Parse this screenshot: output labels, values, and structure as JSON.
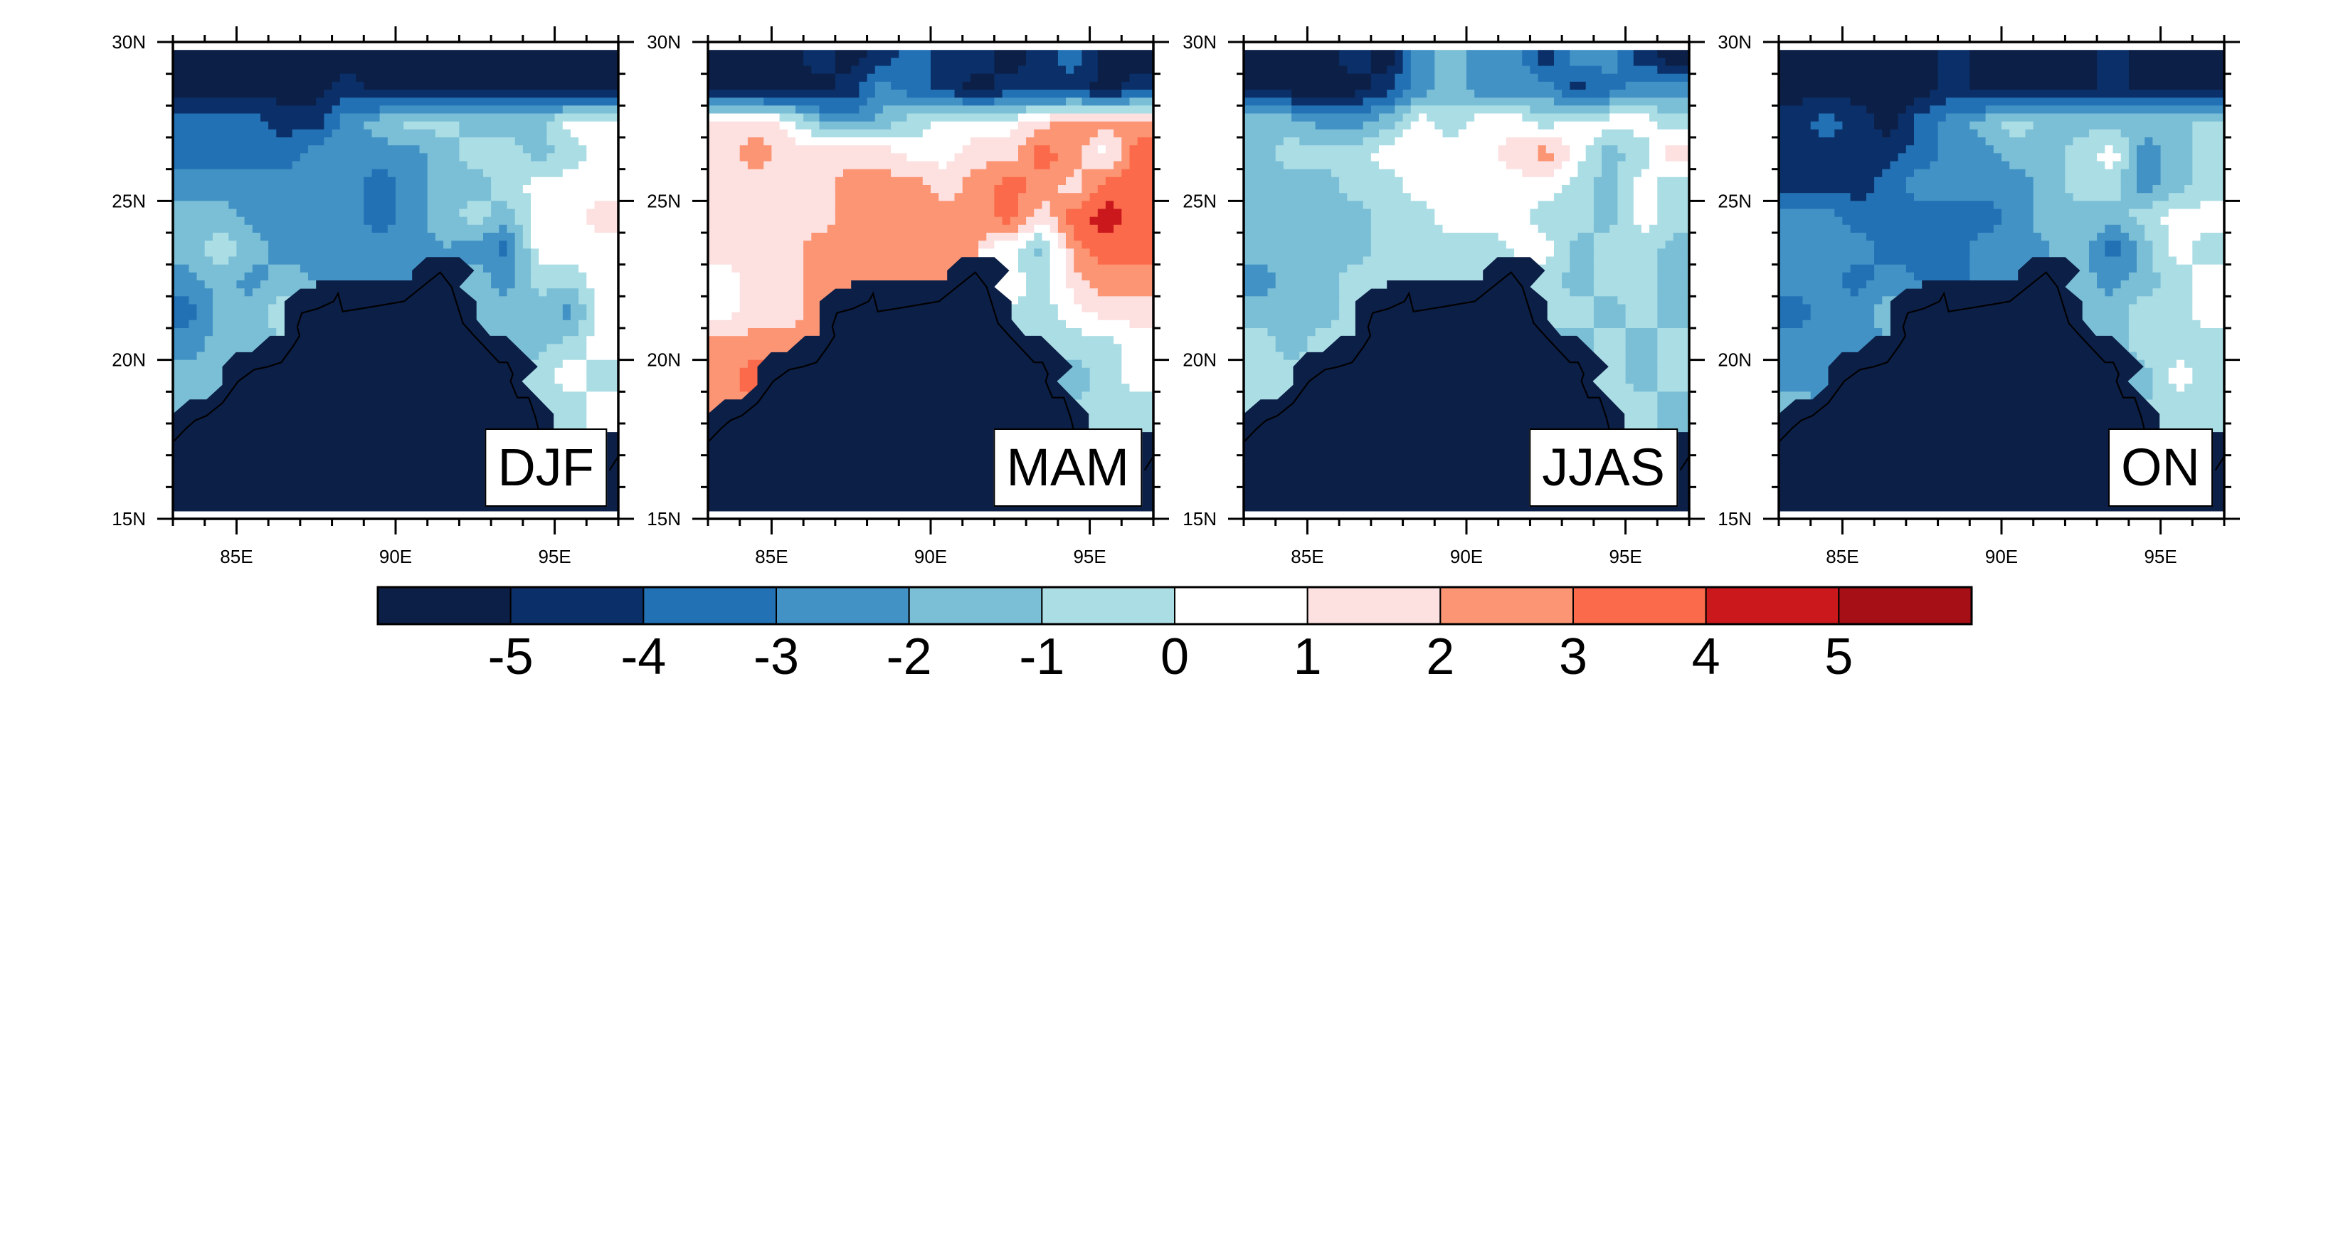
{
  "axes": {
    "lat_tick_labels": [
      "30N",
      "25N",
      "20N",
      "15N"
    ],
    "lon_tick_labels": [
      "85E",
      "90E",
      "95E"
    ]
  },
  "colorbar": {
    "labels": [
      "-5",
      "-4",
      "-3",
      "-2",
      "-1",
      "0",
      "1",
      "2",
      "3",
      "4",
      "5"
    ],
    "colors": [
      "#0c1f47",
      "#0b3069",
      "#2271b5",
      "#4292c6",
      "#7bbfd6",
      "#abdde5",
      "#ffffff",
      "#fde0e0",
      "#fc9574",
      "#fb6a4a",
      "#cb181d",
      "#a50f15"
    ]
  },
  "chart_data": {
    "type": "heatmap",
    "lon_range": [
      83,
      97
    ],
    "lat_range": [
      15,
      30
    ],
    "lat_ticks": [
      30,
      25,
      20,
      15
    ],
    "lon_ticks": [
      85,
      90,
      95
    ],
    "levels": [
      -5,
      -4,
      -3,
      -2,
      -1,
      0,
      1,
      2,
      3,
      4,
      5
    ],
    "grid_lon": [
      83.5,
      84.5,
      85.5,
      86.5,
      87.5,
      88.5,
      89.5,
      90.5,
      91.5,
      92.5,
      93.5,
      94.5,
      95.5,
      96.5
    ],
    "grid_lat": [
      29.5,
      28.5,
      27.5,
      26.5,
      25.5,
      24.5,
      23.5,
      22.5,
      21.5,
      20.5,
      19.5,
      18.5,
      17.5,
      16.5,
      15.5
    ],
    "panels": [
      {
        "title": "DJF",
        "values": [
          [
            -5.5,
            -5.5,
            -5.5,
            -5.5,
            -5.5,
            -5.5,
            -5.5,
            -5.5,
            -5.5,
            -5.5,
            -5.5,
            -5.5,
            -5.5,
            -5.5
          ],
          [
            -5.5,
            -5.5,
            -5.5,
            -5.5,
            -5.5,
            -4.5,
            -5.5,
            -5.5,
            -5.5,
            -5.5,
            -5.5,
            -5.5,
            -5.5,
            -5.5
          ],
          [
            -3.5,
            -3.5,
            -3.5,
            -4.5,
            -4.5,
            -2.5,
            -1.5,
            -0.5,
            -0.5,
            -1.5,
            -1.5,
            -1.5,
            0.5,
            0.5
          ],
          [
            -3.5,
            -3.5,
            -3.5,
            -3.5,
            -2.5,
            -2.5,
            -2.5,
            -2.5,
            -1.5,
            -0.5,
            -0.5,
            -1.5,
            -0.5,
            0.5
          ],
          [
            -2.5,
            -2.5,
            -2.5,
            -2.5,
            -2.5,
            -2.5,
            -3.5,
            -2.5,
            -1.5,
            -1.5,
            -0.5,
            0.5,
            0.5,
            0.5
          ],
          [
            -1.5,
            -1.5,
            -2.5,
            -2.5,
            -2.5,
            -2.5,
            -3.5,
            -2.5,
            -1.5,
            -0.5,
            -1.5,
            0.5,
            0.5,
            1.5
          ],
          [
            -1.5,
            -0.5,
            -1.5,
            -2.5,
            -2.5,
            -2.5,
            -2.5,
            -2.5,
            null,
            -2.5,
            -3.5,
            0.5,
            0.5,
            0.5
          ],
          [
            -2.5,
            -1.5,
            -2.5,
            -1.5,
            null,
            null,
            null,
            null,
            null,
            -1.5,
            -2.5,
            -0.5,
            -0.5,
            0.5
          ],
          [
            -3.5,
            -1.5,
            -1.5,
            -0.5,
            null,
            null,
            null,
            null,
            null,
            null,
            -1.5,
            -1.5,
            -2.5,
            0.5
          ],
          [
            -2.5,
            -1.5,
            -1.5,
            null,
            null,
            null,
            null,
            null,
            null,
            null,
            -1.5,
            -1.5,
            -0.5,
            0.5
          ],
          [
            -1.5,
            -1.5,
            null,
            null,
            null,
            null,
            null,
            null,
            null,
            null,
            null,
            -0.5,
            0.5,
            -0.5
          ],
          [
            -1.5,
            null,
            null,
            null,
            null,
            null,
            null,
            null,
            null,
            null,
            null,
            null,
            -0.5,
            0.5
          ],
          [
            null,
            null,
            null,
            null,
            null,
            null,
            null,
            null,
            null,
            null,
            null,
            null,
            null,
            null
          ],
          [
            null,
            null,
            null,
            null,
            null,
            null,
            null,
            null,
            null,
            null,
            null,
            null,
            null,
            null
          ],
          [
            null,
            null,
            null,
            null,
            null,
            null,
            null,
            null,
            null,
            null,
            null,
            null,
            null,
            null
          ]
        ]
      },
      {
        "title": "MAM",
        "values": [
          [
            -5.5,
            -5.5,
            -5.5,
            -4.5,
            -5.5,
            -4.5,
            -3.5,
            -4.5,
            -4.5,
            -5.5,
            -4.5,
            -3.5,
            -5.5,
            -5.5
          ],
          [
            -5.5,
            -5.5,
            -5.5,
            -5.5,
            -4.5,
            -2.5,
            -3.5,
            -4.5,
            -5.5,
            -4.5,
            -4.5,
            -4.5,
            -5.5,
            -4.5
          ],
          [
            1.5,
            1.5,
            0.5,
            -1.5,
            -2.5,
            -1.5,
            -0.5,
            0.5,
            0.5,
            0.5,
            1.5,
            2.5,
            2.5,
            2.5
          ],
          [
            1.5,
            2.5,
            1.5,
            1.5,
            1.5,
            1.5,
            0.5,
            0.5,
            1.5,
            1.5,
            3.5,
            2.5,
            0.5,
            3.5
          ],
          [
            1.5,
            1.5,
            1.5,
            1.5,
            2.5,
            2.5,
            2.5,
            1.5,
            2.5,
            3.5,
            2.5,
            1.5,
            3.5,
            3.5
          ],
          [
            1.5,
            1.5,
            1.5,
            1.5,
            2.5,
            2.5,
            2.5,
            2.5,
            2.5,
            3.5,
            1.5,
            3.5,
            4.5,
            3.5
          ],
          [
            1.5,
            1.5,
            1.5,
            2.5,
            2.5,
            2.5,
            2.5,
            2.5,
            null,
            0.5,
            -1.5,
            2.5,
            3.5,
            3.5
          ],
          [
            0.5,
            1.5,
            1.5,
            2.5,
            null,
            null,
            null,
            null,
            null,
            0.5,
            -0.5,
            1.5,
            2.5,
            2.5
          ],
          [
            0.5,
            1.5,
            1.5,
            2.5,
            null,
            null,
            null,
            null,
            null,
            null,
            -0.5,
            0.5,
            1.5,
            1.5
          ],
          [
            2.5,
            2.5,
            2.5,
            null,
            null,
            null,
            null,
            null,
            null,
            null,
            -0.5,
            -0.5,
            -0.5,
            0.5
          ],
          [
            2.5,
            3.5,
            null,
            null,
            null,
            null,
            null,
            null,
            null,
            null,
            null,
            -1.5,
            -0.5,
            0.5
          ],
          [
            2.5,
            null,
            null,
            null,
            null,
            null,
            null,
            null,
            null,
            null,
            null,
            null,
            -0.5,
            -0.5
          ],
          [
            null,
            null,
            null,
            null,
            null,
            null,
            null,
            null,
            null,
            null,
            null,
            null,
            null,
            null
          ],
          [
            null,
            null,
            null,
            null,
            null,
            null,
            null,
            null,
            null,
            null,
            null,
            null,
            null,
            null
          ],
          [
            null,
            null,
            null,
            null,
            null,
            null,
            null,
            null,
            null,
            null,
            null,
            null,
            null,
            null
          ]
        ]
      },
      {
        "title": "JJAS",
        "values": [
          [
            -5.5,
            -5.5,
            -5.5,
            -4.5,
            -5.5,
            -2.5,
            -1.5,
            -2.5,
            -2.5,
            -4.5,
            -2.5,
            -2.5,
            -4.5,
            -5.5
          ],
          [
            -5.5,
            -5.5,
            -5.5,
            -5.5,
            -4.5,
            -2.5,
            -1.5,
            -2.5,
            -2.5,
            -2.5,
            -4.5,
            -3.5,
            -2.5,
            -2.5
          ],
          [
            -1.5,
            -1.5,
            -2.5,
            -2.5,
            -1.5,
            0.5,
            -0.5,
            0.5,
            0.5,
            -0.5,
            0.5,
            0.5,
            0.5,
            -0.5
          ],
          [
            -1.5,
            -0.5,
            -0.5,
            -0.5,
            0.5,
            0.5,
            0.5,
            0.5,
            1.5,
            2.5,
            0.5,
            -1.5,
            -0.5,
            1.5
          ],
          [
            -1.5,
            -1.5,
            -1.5,
            -0.5,
            -0.5,
            0.5,
            0.5,
            0.5,
            0.5,
            0.5,
            -0.5,
            -1.5,
            0.5,
            -0.5
          ],
          [
            -1.5,
            -1.5,
            -1.5,
            -1.5,
            -0.5,
            -0.5,
            0.5,
            0.5,
            0.5,
            -0.5,
            -0.5,
            -1.5,
            0.5,
            -0.5
          ],
          [
            -1.5,
            -1.5,
            -1.5,
            -1.5,
            -0.5,
            -0.5,
            -0.5,
            -0.5,
            null,
            0.5,
            -1.5,
            -0.5,
            -0.5,
            -1.5
          ],
          [
            -2.5,
            -1.5,
            -1.5,
            -0.5,
            null,
            null,
            null,
            null,
            null,
            -0.5,
            -1.5,
            -0.5,
            -0.5,
            -1.5
          ],
          [
            -1.5,
            -1.5,
            -1.5,
            -0.5,
            null,
            null,
            null,
            null,
            null,
            null,
            -0.5,
            -1.5,
            -0.5,
            -1.5
          ],
          [
            -0.5,
            -1.5,
            -0.5,
            null,
            null,
            null,
            null,
            null,
            null,
            null,
            -1.5,
            -0.5,
            -1.5,
            -0.5
          ],
          [
            -0.5,
            -0.5,
            null,
            null,
            null,
            null,
            null,
            null,
            null,
            null,
            null,
            -0.5,
            -1.5,
            -0.5
          ],
          [
            -0.5,
            null,
            null,
            null,
            null,
            null,
            null,
            null,
            null,
            null,
            null,
            null,
            -0.5,
            -1.5
          ],
          [
            null,
            null,
            null,
            null,
            null,
            null,
            null,
            null,
            null,
            null,
            null,
            null,
            null,
            null
          ],
          [
            null,
            null,
            null,
            null,
            null,
            null,
            null,
            null,
            null,
            null,
            null,
            null,
            null,
            null
          ],
          [
            null,
            null,
            null,
            null,
            null,
            null,
            null,
            null,
            null,
            null,
            null,
            null,
            null,
            null
          ]
        ]
      },
      {
        "title": "ON",
        "values": [
          [
            -5.5,
            -5.5,
            -5.5,
            -5.5,
            -5.5,
            -4.5,
            -5.5,
            -5.5,
            -5.5,
            -5.5,
            -4.5,
            -5.5,
            -5.5,
            -5.5
          ],
          [
            -5.5,
            -5.5,
            -5.5,
            -5.5,
            -5.5,
            -4.5,
            -5.5,
            -5.5,
            -5.5,
            -5.5,
            -4.5,
            -5.5,
            -5.5,
            -5.5
          ],
          [
            -4.5,
            -3.5,
            -4.5,
            -5.5,
            -3.5,
            -2.5,
            -1.5,
            -0.5,
            -1.5,
            -1.5,
            -1.5,
            -1.5,
            -1.5,
            -0.5
          ],
          [
            -4.5,
            -4.5,
            -4.5,
            -4.5,
            -3.5,
            -2.5,
            -2.5,
            -1.5,
            -1.5,
            -0.5,
            0.5,
            -2.5,
            -1.5,
            -0.5
          ],
          [
            -4.5,
            -4.5,
            -4.5,
            -3.5,
            -2.5,
            -2.5,
            -2.5,
            -2.5,
            -1.5,
            -0.5,
            -0.5,
            -2.5,
            -1.5,
            -0.5
          ],
          [
            -2.5,
            -2.5,
            -3.5,
            -3.5,
            -3.5,
            -3.5,
            -3.5,
            -2.5,
            -1.5,
            -1.5,
            -1.5,
            -0.5,
            0.5,
            0.5
          ],
          [
            -2.5,
            -2.5,
            -2.5,
            -3.5,
            -3.5,
            -3.5,
            -2.5,
            -2.5,
            null,
            -1.5,
            -3.5,
            -1.5,
            0.5,
            -0.5
          ],
          [
            -2.5,
            -2.5,
            -3.5,
            -2.5,
            null,
            null,
            null,
            null,
            null,
            -1.5,
            -2.5,
            -1.5,
            -0.5,
            0.5
          ],
          [
            -3.5,
            -2.5,
            -2.5,
            -1.5,
            null,
            null,
            null,
            null,
            null,
            null,
            -1.5,
            -0.5,
            -0.5,
            0.5
          ],
          [
            -2.5,
            -2.5,
            -2.5,
            null,
            null,
            null,
            null,
            null,
            null,
            null,
            -1.5,
            -0.5,
            -0.5,
            -0.5
          ],
          [
            -2.5,
            -2.5,
            null,
            null,
            null,
            null,
            null,
            null,
            null,
            null,
            null,
            -1.5,
            0.5,
            -0.5
          ],
          [
            -1.5,
            null,
            null,
            null,
            null,
            null,
            null,
            null,
            null,
            null,
            null,
            null,
            -0.5,
            -0.5
          ],
          [
            null,
            null,
            null,
            null,
            null,
            null,
            null,
            null,
            null,
            null,
            null,
            null,
            null,
            null
          ],
          [
            null,
            null,
            null,
            null,
            null,
            null,
            null,
            null,
            null,
            null,
            null,
            null,
            null,
            null
          ],
          [
            null,
            null,
            null,
            null,
            null,
            null,
            null,
            null,
            null,
            null,
            null,
            null,
            null,
            null
          ]
        ]
      }
    ]
  }
}
